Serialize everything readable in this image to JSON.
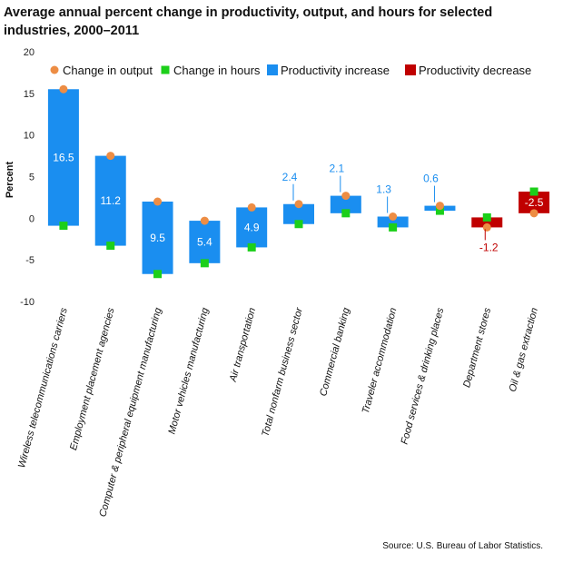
{
  "chart_data": {
    "type": "bar",
    "title": "Average annual percent change in productivity, output, and hours for selected industries, 2000–2011",
    "ylabel": "Percent",
    "xlabel": "",
    "ylim": [
      -10,
      20
    ],
    "yticks": [
      -10,
      -5,
      0,
      5,
      10,
      15,
      20
    ],
    "legend_position": "top-right",
    "legend": [
      "Change in output",
      "Change in hours",
      "Productivity increase",
      "Productivity decrease"
    ],
    "categories": [
      "Wireless telecommunications carriers",
      "Employment placement agencies",
      "Computer & peripheral equipment manufacturing",
      "Motor vehicles manufacturing",
      "Air transportation",
      "Total nonfarm business sector",
      "Commercial banking",
      "Traveler accommodation",
      "Food services & drinking places",
      "Department stores",
      "Oil & gas extraction"
    ],
    "series": [
      {
        "name": "Change in output",
        "values": [
          15.5,
          7.5,
          2.0,
          -0.3,
          1.3,
          1.7,
          2.7,
          0.2,
          1.5,
          -1.1,
          0.6
        ]
      },
      {
        "name": "Change in hours",
        "values": [
          -0.9,
          -3.3,
          -6.7,
          -5.4,
          -3.5,
          -0.7,
          0.6,
          -1.1,
          0.9,
          0.1,
          3.2
        ]
      },
      {
        "name": "Productivity",
        "values": [
          16.5,
          11.2,
          9.5,
          5.4,
          4.9,
          2.4,
          2.1,
          1.3,
          0.6,
          -1.2,
          -2.5
        ]
      }
    ],
    "colors": {
      "output": "#ed8d44",
      "hours": "#1ccf1a",
      "increase": "#1a8ef0",
      "decrease": "#c00000",
      "increase_label_outside": "#1a8ef0",
      "decrease_label_outside": "#c00000"
    },
    "source": "Source: U.S. Bureau of Labor Statistics."
  }
}
